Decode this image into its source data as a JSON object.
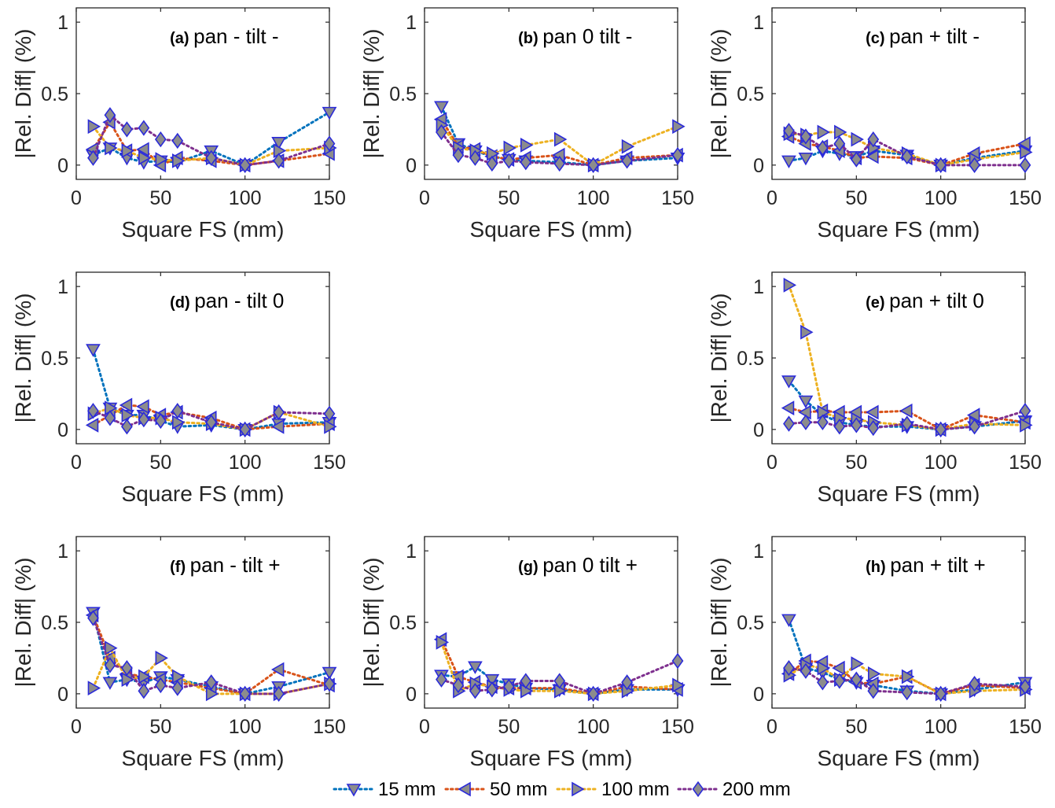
{
  "figure": {
    "xlabel": "Square FS (mm)",
    "ylabel": "|Rel. Diff| (%)"
  },
  "series_styles": [
    {
      "name": "15 mm",
      "color": "#0072bd",
      "marker": "triangle-down"
    },
    {
      "name": "50 mm",
      "color": "#d95319",
      "marker": "triangle-left"
    },
    {
      "name": "100 mm",
      "color": "#edb120",
      "marker": "triangle-right"
    },
    {
      "name": "200 mm",
      "color": "#7e2f8e",
      "marker": "diamond"
    }
  ],
  "marker_style": {
    "fill": "#8c8c8c",
    "edge": "#2b2bd9"
  },
  "chart_data": [
    {
      "type": "line",
      "tag": "(a)",
      "title": "pan - tilt -",
      "xlim": [
        0,
        150
      ],
      "ylim": [
        -0.1,
        1.1
      ],
      "xticks": [
        "0",
        "50",
        "100",
        "150"
      ],
      "yticks": [
        "0",
        "0.5",
        "1"
      ],
      "x": [
        10,
        20,
        30,
        40,
        50,
        60,
        80,
        100,
        120,
        150
      ],
      "series": [
        {
          "name": "15 mm",
          "values": [
            0.07,
            0.12,
            0.05,
            0.02,
            0.03,
            0.02,
            0.1,
            0.0,
            0.16,
            0.37
          ]
        },
        {
          "name": "50 mm",
          "values": [
            0.11,
            0.3,
            0.1,
            0.11,
            0.0,
            0.05,
            0.03,
            0.0,
            0.03,
            0.08
          ]
        },
        {
          "name": "100 mm",
          "values": [
            0.27,
            0.12,
            0.1,
            0.05,
            0.04,
            0.03,
            0.05,
            0.0,
            0.1,
            0.12
          ]
        },
        {
          "name": "200 mm",
          "values": [
            0.05,
            0.35,
            0.25,
            0.26,
            0.18,
            0.17,
            0.05,
            0.0,
            0.03,
            0.15
          ]
        }
      ]
    },
    {
      "type": "line",
      "tag": "(b)",
      "title": "pan 0 tilt -",
      "xlim": [
        0,
        150
      ],
      "ylim": [
        -0.1,
        1.1
      ],
      "xticks": [
        "0",
        "50",
        "100",
        "150"
      ],
      "yticks": [
        "0",
        "0.5",
        "1"
      ],
      "x": [
        10,
        20,
        30,
        40,
        50,
        60,
        80,
        100,
        120,
        150
      ],
      "series": [
        {
          "name": "15 mm",
          "values": [
            0.41,
            0.15,
            0.1,
            0.06,
            0.04,
            0.03,
            0.02,
            0.0,
            0.03,
            0.05
          ]
        },
        {
          "name": "50 mm",
          "values": [
            0.32,
            0.13,
            0.11,
            0.06,
            0.04,
            0.05,
            0.07,
            0.0,
            0.05,
            0.07
          ]
        },
        {
          "name": "100 mm",
          "values": [
            0.28,
            0.12,
            0.1,
            0.08,
            0.12,
            0.14,
            0.18,
            0.0,
            0.13,
            0.27
          ]
        },
        {
          "name": "200 mm",
          "values": [
            0.23,
            0.07,
            0.05,
            0.01,
            0.03,
            0.02,
            0.01,
            0.0,
            0.03,
            0.07
          ]
        }
      ]
    },
    {
      "type": "line",
      "tag": "(c)",
      "title": "pan + tilt -",
      "xlim": [
        0,
        150
      ],
      "ylim": [
        -0.1,
        1.1
      ],
      "xticks": [
        "0",
        "50",
        "100",
        "150"
      ],
      "yticks": [
        "0",
        "0.5",
        "1"
      ],
      "x": [
        10,
        20,
        30,
        40,
        50,
        60,
        80,
        100,
        120,
        150
      ],
      "series": [
        {
          "name": "15 mm",
          "values": [
            0.03,
            0.05,
            0.1,
            0.08,
            0.06,
            0.1,
            0.07,
            0.0,
            0.05,
            0.1
          ]
        },
        {
          "name": "50 mm",
          "values": [
            0.2,
            0.15,
            0.13,
            0.1,
            0.05,
            0.06,
            0.05,
            0.0,
            0.08,
            0.15
          ]
        },
        {
          "name": "100 mm",
          "values": [
            0.22,
            0.21,
            0.23,
            0.23,
            0.18,
            0.12,
            0.08,
            0.0,
            0.04,
            0.09
          ]
        },
        {
          "name": "200 mm",
          "values": [
            0.24,
            0.2,
            0.12,
            0.15,
            0.04,
            0.18,
            0.06,
            0.0,
            0.0,
            0.0
          ]
        }
      ]
    },
    {
      "type": "line",
      "tag": "(d)",
      "title": "pan - tilt 0",
      "xlim": [
        0,
        150
      ],
      "ylim": [
        -0.1,
        1.1
      ],
      "xticks": [
        "0",
        "50",
        "100",
        "150"
      ],
      "yticks": [
        "0",
        "0.5",
        "1"
      ],
      "x": [
        10,
        20,
        30,
        40,
        50,
        60,
        80,
        100,
        120,
        150
      ],
      "series": [
        {
          "name": "15 mm",
          "values": [
            0.56,
            0.15,
            0.1,
            0.1,
            0.06,
            0.02,
            0.03,
            0.0,
            0.04,
            0.05
          ]
        },
        {
          "name": "50 mm",
          "values": [
            0.03,
            0.1,
            0.17,
            0.16,
            0.1,
            0.12,
            0.08,
            0.0,
            0.02,
            0.04
          ]
        },
        {
          "name": "100 mm",
          "values": [
            0.11,
            0.15,
            0.1,
            0.08,
            0.08,
            0.05,
            0.04,
            0.0,
            0.12,
            0.02
          ]
        },
        {
          "name": "200 mm",
          "values": [
            0.13,
            0.08,
            0.02,
            0.07,
            0.06,
            0.13,
            0.05,
            0.0,
            0.12,
            0.11
          ]
        }
      ]
    },
    {
      "type": "line",
      "tag": "(e)",
      "title": "pan + tilt 0",
      "xlim": [
        0,
        150
      ],
      "ylim": [
        -0.1,
        1.1
      ],
      "xticks": [
        "0",
        "50",
        "100",
        "150"
      ],
      "yticks": [
        "0",
        "0.5",
        "1"
      ],
      "x": [
        10,
        20,
        30,
        40,
        50,
        60,
        80,
        100,
        120,
        150
      ],
      "series": [
        {
          "name": "15 mm",
          "values": [
            0.34,
            0.2,
            0.1,
            0.05,
            0.03,
            0.02,
            0.02,
            0.0,
            0.02,
            0.06
          ]
        },
        {
          "name": "50 mm",
          "values": [
            0.15,
            0.12,
            0.13,
            0.12,
            0.12,
            0.12,
            0.13,
            0.0,
            0.1,
            0.05
          ]
        },
        {
          "name": "100 mm",
          "values": [
            1.01,
            0.68,
            0.12,
            0.08,
            0.07,
            0.05,
            0.03,
            0.0,
            0.04,
            0.03
          ]
        },
        {
          "name": "200 mm",
          "values": [
            0.04,
            0.05,
            0.05,
            0.02,
            0.03,
            0.01,
            0.04,
            0.0,
            0.02,
            0.13
          ]
        }
      ]
    },
    {
      "type": "line",
      "tag": "(f)",
      "title": "pan - tilt +",
      "xlim": [
        0,
        150
      ],
      "ylim": [
        -0.1,
        1.1
      ],
      "xticks": [
        "0",
        "50",
        "100",
        "150"
      ],
      "yticks": [
        "0",
        "0.5",
        "1"
      ],
      "x": [
        10,
        20,
        30,
        40,
        50,
        60,
        80,
        100,
        120,
        150
      ],
      "series": [
        {
          "name": "15 mm",
          "values": [
            0.57,
            0.08,
            0.1,
            0.08,
            0.12,
            0.1,
            0.05,
            0.0,
            0.05,
            0.15
          ]
        },
        {
          "name": "50 mm",
          "values": [
            0.55,
            0.25,
            0.14,
            0.12,
            0.1,
            0.08,
            0.04,
            0.0,
            0.17,
            0.06
          ]
        },
        {
          "name": "100 mm",
          "values": [
            0.04,
            0.32,
            0.1,
            0.12,
            0.25,
            0.12,
            0.0,
            0.0,
            0.0,
            0.07
          ]
        },
        {
          "name": "200 mm",
          "values": [
            0.53,
            0.2,
            0.18,
            0.02,
            0.06,
            0.04,
            0.08,
            0.0,
            0.0,
            0.07
          ]
        }
      ]
    },
    {
      "type": "line",
      "tag": "(g)",
      "title": "pan 0 tilt +",
      "xlim": [
        0,
        150
      ],
      "ylim": [
        -0.1,
        1.1
      ],
      "xticks": [
        "0",
        "50",
        "100",
        "150"
      ],
      "yticks": [
        "0",
        "0.5",
        "1"
      ],
      "x": [
        10,
        20,
        30,
        40,
        50,
        60,
        80,
        100,
        120,
        150
      ],
      "series": [
        {
          "name": "15 mm",
          "values": [
            0.13,
            0.12,
            0.19,
            0.1,
            0.07,
            0.04,
            0.03,
            0.0,
            0.03,
            0.03
          ]
        },
        {
          "name": "50 mm",
          "values": [
            0.38,
            0.12,
            0.08,
            0.05,
            0.04,
            0.04,
            0.04,
            0.0,
            0.05,
            0.03
          ]
        },
        {
          "name": "100 mm",
          "values": [
            0.36,
            0.02,
            0.07,
            0.05,
            0.03,
            0.02,
            0.02,
            0.0,
            0.02,
            0.06
          ]
        },
        {
          "name": "200 mm",
          "values": [
            0.1,
            0.06,
            0.02,
            0.03,
            0.05,
            0.09,
            0.09,
            0.0,
            0.08,
            0.23
          ]
        }
      ]
    },
    {
      "type": "line",
      "tag": "(h)",
      "title": "pan + tilt +",
      "xlim": [
        0,
        150
      ],
      "ylim": [
        -0.1,
        1.1
      ],
      "xticks": [
        "0",
        "50",
        "100",
        "150"
      ],
      "yticks": [
        "0",
        "0.5",
        "1"
      ],
      "x": [
        10,
        20,
        30,
        40,
        50,
        60,
        80,
        100,
        120,
        150
      ],
      "series": [
        {
          "name": "15 mm",
          "values": [
            0.52,
            0.18,
            0.15,
            0.1,
            0.08,
            0.06,
            0.02,
            0.0,
            0.03,
            0.08
          ]
        },
        {
          "name": "50 mm",
          "values": [
            0.14,
            0.23,
            0.22,
            0.18,
            0.08,
            0.07,
            0.12,
            0.0,
            0.06,
            0.04
          ]
        },
        {
          "name": "100 mm",
          "values": [
            0.13,
            0.2,
            0.18,
            0.1,
            0.21,
            0.14,
            0.12,
            0.0,
            0.02,
            0.03
          ]
        },
        {
          "name": "200 mm",
          "values": [
            0.18,
            0.16,
            0.08,
            0.09,
            0.1,
            0.02,
            0.01,
            0.0,
            0.07,
            0.05
          ]
        }
      ]
    }
  ],
  "legend": {
    "placement": "bottom-center",
    "entries": [
      "15 mm",
      "50 mm",
      "100 mm",
      "200 mm"
    ]
  }
}
